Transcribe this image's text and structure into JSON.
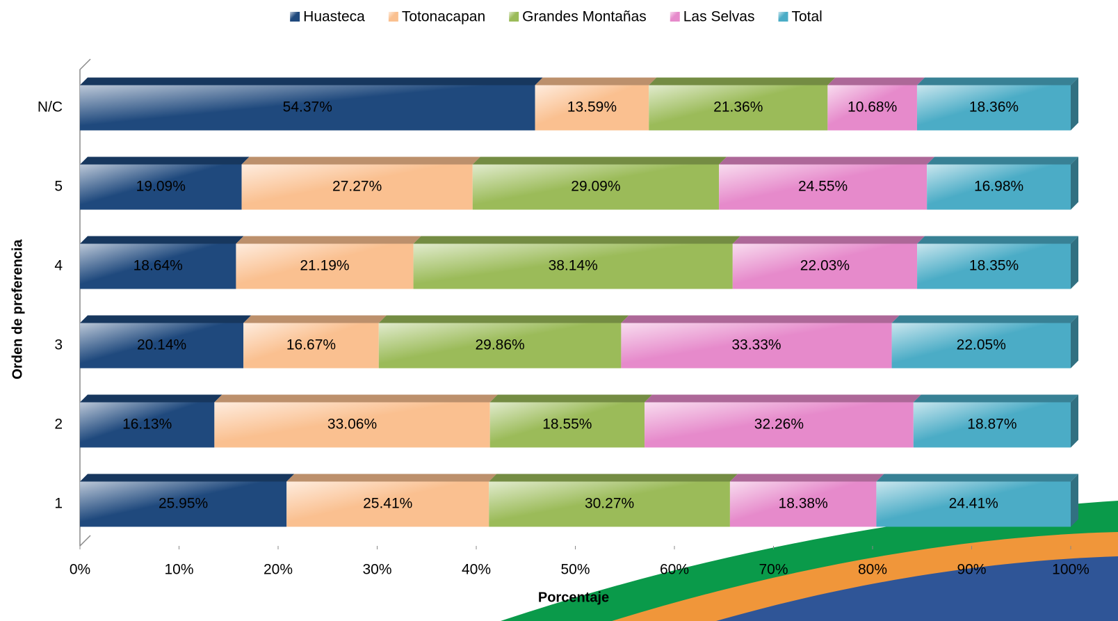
{
  "chart_data": {
    "type": "bar",
    "orientation": "horizontal",
    "stack": "percent",
    "x_label": "Porcentaje",
    "y_label": "Orden de preferencia",
    "categories": [
      "1",
      "2",
      "3",
      "4",
      "5",
      "N/C"
    ],
    "series": [
      {
        "name": "Huasteca",
        "color": "#1f497d",
        "values": [
          25.95,
          16.13,
          20.14,
          18.64,
          19.09,
          54.37
        ],
        "value_labels": [
          "25.95%",
          "16.13%",
          "20.14%",
          "18.64%",
          "19.09%",
          "54.37%"
        ]
      },
      {
        "name": "Totonacapan",
        "color": "#fac090",
        "values": [
          25.41,
          33.06,
          16.67,
          21.19,
          27.27,
          13.59
        ],
        "value_labels": [
          "25.41%",
          "33.06%",
          "16.67%",
          "21.19%",
          "27.27%",
          "13.59%"
        ]
      },
      {
        "name": "Grandes Montañas",
        "color": "#9bbb59",
        "values": [
          30.27,
          18.55,
          29.86,
          38.14,
          29.09,
          21.36
        ],
        "value_labels": [
          "30.27%",
          "18.55%",
          "29.86%",
          "38.14%",
          "29.09%",
          "21.36%"
        ]
      },
      {
        "name": "Las Selvas",
        "color": "#e68acb",
        "values": [
          18.38,
          32.26,
          33.33,
          22.03,
          24.55,
          10.68
        ],
        "value_labels": [
          "18.38%",
          "32.26%",
          "33.33%",
          "22.03%",
          "24.55%",
          "10.68%"
        ]
      },
      {
        "name": "Total",
        "color": "#4bacc6",
        "values": [
          24.41,
          18.87,
          22.05,
          18.35,
          16.98,
          18.36
        ],
        "value_labels": [
          "24.41%",
          "18.87%",
          "22.05%",
          "18.35%",
          "16.98%",
          "18.36%"
        ]
      }
    ],
    "xlim": [
      0,
      100
    ],
    "xticks": [
      {
        "value": 0,
        "label": "0%"
      },
      {
        "value": 10,
        "label": "10%"
      },
      {
        "value": 20,
        "label": "20%"
      },
      {
        "value": 30,
        "label": "30%"
      },
      {
        "value": 40,
        "label": "40%"
      },
      {
        "value": 50,
        "label": "50%"
      },
      {
        "value": 60,
        "label": "60%"
      },
      {
        "value": 70,
        "label": "70%"
      },
      {
        "value": 80,
        "label": "80%"
      },
      {
        "value": 90,
        "label": "90%"
      },
      {
        "value": 100,
        "label": "100%"
      }
    ],
    "legend": "top"
  }
}
